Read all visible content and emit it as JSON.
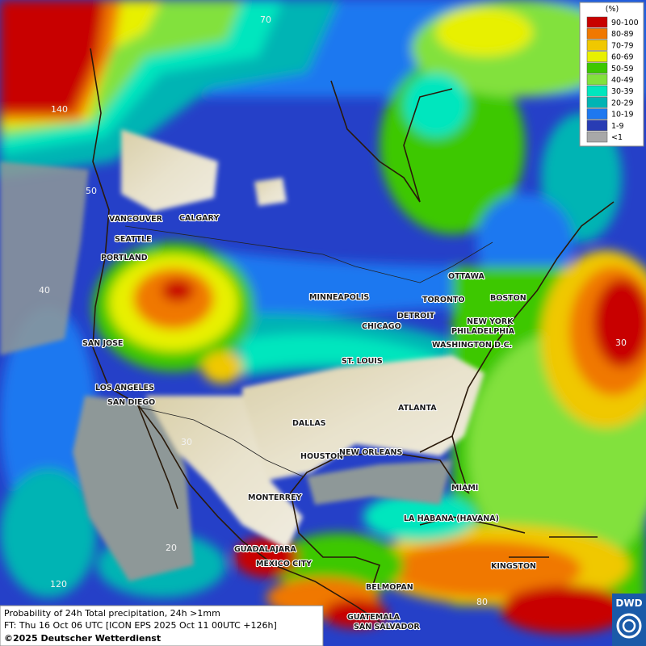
{
  "legend": {
    "title": "(%)",
    "items": [
      {
        "label": "90-100",
        "color": "#c80000"
      },
      {
        "label": "80-89",
        "color": "#f07800"
      },
      {
        "label": "70-79",
        "color": "#f0c800"
      },
      {
        "label": "60-69",
        "color": "#e8f000"
      },
      {
        "label": "50-59",
        "color": "#3cc800"
      },
      {
        "label": "40-49",
        "color": "#82e13c"
      },
      {
        "label": "30-39",
        "color": "#00e6be"
      },
      {
        "label": "20-29",
        "color": "#00b4b4"
      },
      {
        "label": "10-19",
        "color": "#1e78f0"
      },
      {
        "label": "1-9",
        "color": "#283cb4"
      },
      {
        "label": "<1",
        "color": "#a8a8a8"
      }
    ]
  },
  "cities": [
    "VANCOUVER",
    "CALGARY",
    "SEATTLE",
    "PORTLAND",
    "MINNEAPOLIS",
    "OTTAWA",
    "TORONTO",
    "BOSTON",
    "DETROIT",
    "CHICAGO",
    "NEW YORK",
    "PHILADELPHIA",
    "WASHINGTON D.C.",
    "SAN JOSE",
    "ST. LOUIS",
    "LOS ANGELES",
    "SAN DIEGO",
    "ATLANTA",
    "DALLAS",
    "HOUSTON",
    "NEW ORLEANS",
    "MIAMI",
    "MONTERREY",
    "LA HABANA (HAVANA)",
    "GUADALAJARA",
    "MEXICO CITY",
    "KINGSTON",
    "BELMOPAN",
    "GUATEMALA",
    "SAN SALVADOR"
  ],
  "grid_labels": [
    "70",
    "140",
    "50",
    "40",
    "30",
    "20",
    "120",
    "30",
    "80"
  ],
  "footer": {
    "description": "Probability of 24h Total precipitation, 24h >1mm",
    "forecast_time": "FT: Thu 16 Oct 06 UTC [ICON EPS 2025 Oct 11 00UTC +126h]",
    "copyright": "©2025 Deutscher Wetterdienst"
  },
  "logo": "DWD"
}
